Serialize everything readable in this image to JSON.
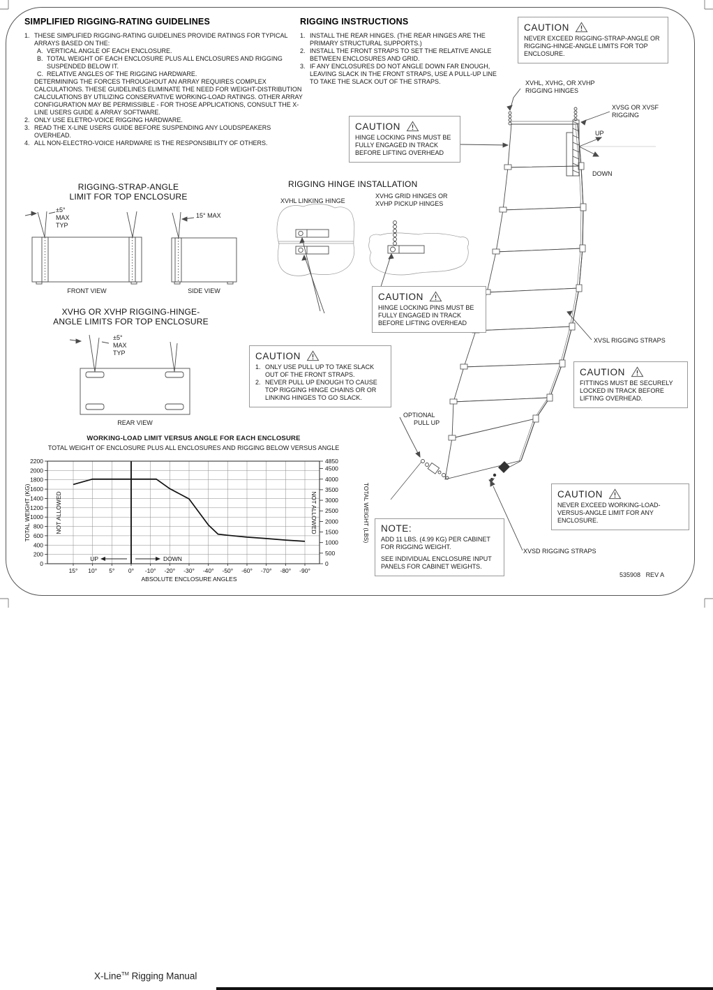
{
  "page": {
    "doc_number": "535908",
    "revision": "REV A",
    "footer": {
      "brand": "X-Line",
      "tm": "TM",
      "rest": " Rigging Manual"
    }
  },
  "guidelines": {
    "heading": "SIMPLIFIED RIGGING-RATING GUIDELINES",
    "item1_num": "1.",
    "item1": "THESE SIMPLIFIED RIGGING-RATING GUIDELINES PROVIDE RATINGS FOR TYPICAL ARRAYS BASED ON THE:",
    "sub_a_num": "A.",
    "sub_a": "VERTICAL ANGLE OF EACH ENCLOSURE.",
    "sub_b_num": "B.",
    "sub_b": "TOTAL WEIGHT OF EACH ENCLOSURE PLUS ALL ENCLOSURES AND RIGGING SUSPENDED BELOW IT.",
    "sub_c_num": "C.",
    "sub_c": "RELATIVE ANGLES OF THE RIGGING HARDWARE.",
    "item1_cont": "DETERMINING THE FORCES THROUGHOUT AN ARRAY REQUIRES COMPLEX CALCULATIONS. THESE GUIDELINES ELIMINATE THE NEED FOR WEIGHT-DISTRIBUTION CALCULATIONS BY UTILIZING CONSERVATIVE WORKING-LOAD RATINGS. OTHER ARRAY CONFIGURATION MAY BE PERMISSIBLE - FOR THOSE APPLICATIONS, CONSULT THE X-LINE USERS GUIDE & ARRAY SOFTWARE.",
    "item2_num": "2.",
    "item2": "ONLY USE ELETRO-VOICE RIGGING HARDWARE.",
    "item3_num": "3.",
    "item3": "READ THE X-LINE USERS GUIDE BEFORE SUSPENDING ANY LOUDSPEAKERS OVERHEAD.",
    "item4_num": "4.",
    "item4": "ALL NON-ELECTRO-VOICE HARDWARE IS THE RESPONSIBILITY OF OTHERS."
  },
  "instructions": {
    "heading": "RIGGING INSTRUCTIONS",
    "item1_num": "1.",
    "item1": "INSTALL THE REAR HINGES. (THE REAR HINGES ARE THE PRIMARY STRUCTURAL SUPPORTS.)",
    "item2_num": "2.",
    "item2": "INSTALL THE FRONT STRAPS TO SET THE RELATIVE ANGLE BETWEEN ENCLOSURES AND GRID.",
    "item3_num": "3.",
    "item3": "IF ANY ENCLOSURES DO NOT ANGLE DOWN FAR ENOUGH, LEAVING SLACK IN THE FRONT STRAPS, USE A PULL-UP LINE TO TAKE THE SLACK OUT OF THE STRAPS."
  },
  "cautions": {
    "title": "CAUTION",
    "top_right": "NEVER EXCEED RIGGING-STRAP-ANGLE OR RIGGING-HINGE-ANGLE LIMITS FOR TOP ENCLOSURE.",
    "hinge_pins_upper": "HINGE LOCKING PINS MUST BE FULLY ENGAGED IN TRACK BEFORE LIFTING OVERHEAD",
    "hinge_pins_lower": "HINGE LOCKING PINS MUST BE FULLY ENGAGED IN TRACK BEFORE LIFTING OVERHEAD",
    "pull_up_1_num": "1.",
    "pull_up_1": "ONLY USE PULL UP TO TAKE SLACK OUT OF THE FRONT STRAPS.",
    "pull_up_2_num": "2.",
    "pull_up_2": "NEVER PULL UP ENOUGH TO CAUSE TOP RIGGING HINGE CHAINS OR OR LINKING HINGES TO GO SLACK.",
    "fittings": "FITTINGS MUST BE SECURELY LOCKED IN TRACK BEFORE LIFTING OVERHEAD.",
    "working_load": "NEVER EXCEED WORKING-LOAD-VERSUS-ANGLE LIMIT FOR ANY ENCLOSURE."
  },
  "note_box": {
    "title": "NOTE:",
    "p1": "ADD 11 LBS. (4.99 KG) PER CABINET FOR RIGGING WEIGHT.",
    "p2": "SEE INDIVIDUAL ENCLOSURE INPUT PANELS FOR CABINET WEIGHTS."
  },
  "strap_angle": {
    "heading1": "RIGGING-STRAP-ANGLE",
    "heading2": "LIMIT FOR TOP ENCLOSURE",
    "tol": "±5°",
    "max": "MAX",
    "typ": "TYP",
    "side_max": "15° MAX",
    "front_view": "FRONT VIEW",
    "side_view": "SIDE VIEW"
  },
  "hinge_install": {
    "heading": "RIGGING HINGE INSTALLATION",
    "left_label": "XVHL LINKING HINGE",
    "right_label1": "XVHG GRID HINGES OR",
    "right_label2": "XVHP PICKUP HINGES"
  },
  "hinge_angle": {
    "heading1": "XVHG OR XVHP RIGGING-HINGE-",
    "heading2": "ANGLE LIMITS FOR TOP ENCLOSURE",
    "tol": "±5°",
    "max": "MAX",
    "typ": "TYP",
    "rear_view": "REAR VIEW"
  },
  "array_labels": {
    "hinges1": "XVHL, XVHG, OR XVHP",
    "hinges2": "RIGGING HINGES",
    "grid1": "XVSG OR XVSF",
    "grid2": "RIGGING",
    "up": "UP",
    "down": "DOWN",
    "xvsl": "XVSL RIGGING STRAPS",
    "optional1": "OPTIONAL",
    "optional2": "PULL UP",
    "xvsd": "XVSD RIGGING STRAPS"
  },
  "chart_data": {
    "type": "line",
    "title": "WORKING-LOAD LIMIT VERSUS ANGLE FOR EACH ENCLOSURE",
    "subtitle": "TOTAL WEIGHT OF ENCLOSURE PLUS ALL ENCLOSURES AND RIGGING BELOW VERSUS ANGLE",
    "xlabel": "ABSOLUTE ENCLOSURE ANGLES",
    "ylabel_left": "TOTAL WEIGHT (KG)",
    "ylabel_right": "TOTAL WEIGHT (LBS)",
    "x_tick_labels": [
      "15°",
      "10°",
      "5°",
      "0°",
      "-10°",
      "-20°",
      "-30°",
      "-40°",
      "-50°",
      "-60°",
      "-70°",
      "-80°",
      "-90°"
    ],
    "x_tick_angles": [
      15,
      10,
      5,
      0,
      -10,
      -20,
      -30,
      -40,
      -50,
      -60,
      -70,
      -80,
      -90
    ],
    "y_ticks_kg": [
      0,
      200,
      400,
      600,
      800,
      1000,
      1200,
      1400,
      1600,
      1800,
      2000,
      2200
    ],
    "y_ticks_lbs": [
      0,
      500,
      1000,
      1500,
      2000,
      2500,
      3000,
      3500,
      4000,
      4500,
      4850
    ],
    "ylim_kg": [
      0,
      2200
    ],
    "ylim_lbs": [
      0,
      4850
    ],
    "grid": true,
    "not_allowed_label": "NOT ALLOWED",
    "up_label": "UP",
    "down_label": "DOWN",
    "series": [
      {
        "name": "WORKING-LOAD LIMIT",
        "points_angle_kg": [
          [
            15,
            1700
          ],
          [
            10,
            1815
          ],
          [
            -13,
            1815
          ],
          [
            -20,
            1610
          ],
          [
            -30,
            1390
          ],
          [
            -40,
            830
          ],
          [
            -45,
            635
          ],
          [
            -50,
            610
          ],
          [
            -60,
            570
          ],
          [
            -70,
            540
          ],
          [
            -80,
            508
          ],
          [
            -90,
            480
          ]
        ]
      }
    ]
  }
}
